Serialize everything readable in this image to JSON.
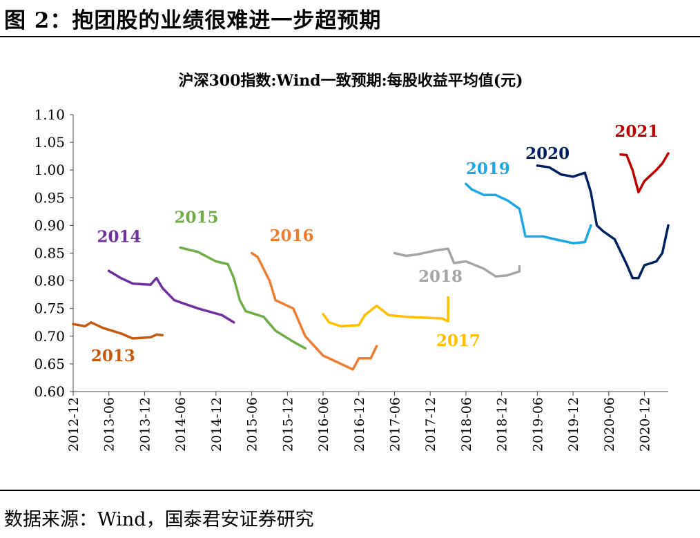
{
  "figure_title": "图 2：抱团股的业绩很难进一步超预期",
  "source_note": "数据来源：Wind，国泰君安证券研究",
  "chart_data": {
    "type": "line",
    "title": "沪深300指数:Wind一致预期:每股收益平均值(元)",
    "xlabel": "",
    "ylabel": "",
    "ylim": [
      0.6,
      1.1
    ],
    "yticks": [
      "0.60",
      "0.65",
      "0.70",
      "0.75",
      "0.80",
      "0.85",
      "0.90",
      "0.95",
      "1.00",
      "1.05",
      "1.10"
    ],
    "xrange": [
      "2012-12",
      "2021-04"
    ],
    "xticks": [
      "2012-12",
      "2013-06",
      "2013-12",
      "2014-06",
      "2014-12",
      "2015-06",
      "2015-12",
      "2016-06",
      "2016-12",
      "2017-06",
      "2017-12",
      "2018-06",
      "2018-12",
      "2019-06",
      "2019-12",
      "2020-06",
      "2020-12"
    ],
    "grid": false,
    "legend": "series labels placed directly next to each line",
    "series": [
      {
        "name": "2013",
        "color": "#C55A11",
        "points": [
          [
            "2012-12",
            0.722
          ],
          [
            "2013-02",
            0.718
          ],
          [
            "2013-03",
            0.725
          ],
          [
            "2013-05",
            0.715
          ],
          [
            "2013-08",
            0.705
          ],
          [
            "2013-10",
            0.696
          ],
          [
            "2014-01",
            0.698
          ],
          [
            "2014-02",
            0.703
          ],
          [
            "2014-03",
            0.702
          ]
        ]
      },
      {
        "name": "2014",
        "color": "#7030A0",
        "points": [
          [
            "2013-06",
            0.818
          ],
          [
            "2013-08",
            0.805
          ],
          [
            "2013-10",
            0.795
          ],
          [
            "2014-01",
            0.793
          ],
          [
            "2014-02",
            0.805
          ],
          [
            "2014-03",
            0.787
          ],
          [
            "2014-05",
            0.765
          ],
          [
            "2014-09",
            0.75
          ],
          [
            "2015-01",
            0.738
          ],
          [
            "2015-03",
            0.725
          ]
        ]
      },
      {
        "name": "2015",
        "color": "#70AD47",
        "points": [
          [
            "2014-06",
            0.86
          ],
          [
            "2014-09",
            0.852
          ],
          [
            "2014-12",
            0.835
          ],
          [
            "2015-02",
            0.83
          ],
          [
            "2015-03",
            0.805
          ],
          [
            "2015-04",
            0.765
          ],
          [
            "2015-05",
            0.745
          ],
          [
            "2015-08",
            0.735
          ],
          [
            "2015-10",
            0.71
          ],
          [
            "2016-01",
            0.69
          ],
          [
            "2016-03",
            0.678
          ]
        ]
      },
      {
        "name": "2016",
        "color": "#ED7D31",
        "points": [
          [
            "2015-06",
            0.85
          ],
          [
            "2015-07",
            0.843
          ],
          [
            "2015-09",
            0.8
          ],
          [
            "2015-10",
            0.765
          ],
          [
            "2016-01",
            0.75
          ],
          [
            "2016-03",
            0.7
          ],
          [
            "2016-06",
            0.665
          ],
          [
            "2016-09",
            0.65
          ],
          [
            "2016-11",
            0.64
          ],
          [
            "2016-12",
            0.66
          ],
          [
            "2017-02",
            0.66
          ],
          [
            "2017-03",
            0.682
          ]
        ]
      },
      {
        "name": "2017",
        "color": "#FFC000",
        "points": [
          [
            "2016-06",
            0.74
          ],
          [
            "2016-07",
            0.725
          ],
          [
            "2016-09",
            0.718
          ],
          [
            "2016-12",
            0.72
          ],
          [
            "2017-01",
            0.738
          ],
          [
            "2017-03",
            0.755
          ],
          [
            "2017-05",
            0.738
          ],
          [
            "2017-08",
            0.735
          ],
          [
            "2018-02",
            0.732
          ],
          [
            "2018-03",
            0.727
          ],
          [
            "2018-03",
            0.77
          ]
        ]
      },
      {
        "name": "2018",
        "color": "#A5A5A5",
        "points": [
          [
            "2017-06",
            0.85
          ],
          [
            "2017-08",
            0.845
          ],
          [
            "2017-10",
            0.848
          ],
          [
            "2018-01",
            0.855
          ],
          [
            "2018-03",
            0.858
          ],
          [
            "2018-04",
            0.832
          ],
          [
            "2018-06",
            0.835
          ],
          [
            "2018-09",
            0.822
          ],
          [
            "2018-11",
            0.808
          ],
          [
            "2019-01",
            0.81
          ],
          [
            "2019-03",
            0.817
          ],
          [
            "2019-03",
            0.826
          ]
        ]
      },
      {
        "name": "2019",
        "color": "#1DA8E4",
        "points": [
          [
            "2018-06",
            0.975
          ],
          [
            "2018-07",
            0.965
          ],
          [
            "2018-09",
            0.955
          ],
          [
            "2018-11",
            0.955
          ],
          [
            "2018-12",
            0.95
          ],
          [
            "2019-01",
            0.945
          ],
          [
            "2019-03",
            0.93
          ],
          [
            "2019-04",
            0.88
          ],
          [
            "2019-07",
            0.88
          ],
          [
            "2019-09",
            0.875
          ],
          [
            "2019-12",
            0.868
          ],
          [
            "2020-02",
            0.87
          ],
          [
            "2020-03",
            0.9
          ]
        ]
      },
      {
        "name": "2020",
        "color": "#002060",
        "points": [
          [
            "2019-06",
            1.008
          ],
          [
            "2019-08",
            1.005
          ],
          [
            "2019-10",
            0.992
          ],
          [
            "2019-12",
            0.988
          ],
          [
            "2020-02",
            0.995
          ],
          [
            "2020-03",
            0.96
          ],
          [
            "2020-04",
            0.9
          ],
          [
            "2020-05",
            0.89
          ],
          [
            "2020-07",
            0.875
          ],
          [
            "2020-09",
            0.83
          ],
          [
            "2020-10",
            0.805
          ],
          [
            "2020-11",
            0.805
          ],
          [
            "2020-12",
            0.828
          ],
          [
            "2021-02",
            0.835
          ],
          [
            "2021-03",
            0.85
          ],
          [
            "2021-04",
            0.9
          ]
        ]
      },
      {
        "name": "2021",
        "color": "#C00000",
        "points": [
          [
            "2020-08",
            1.028
          ],
          [
            "2020-09",
            1.027
          ],
          [
            "2020-10",
            1.0
          ],
          [
            "2020-11",
            0.96
          ],
          [
            "2020-12",
            0.98
          ],
          [
            "2021-01",
            0.99
          ],
          [
            "2021-02",
            1.0
          ],
          [
            "2021-03",
            1.012
          ],
          [
            "2021-04",
            1.03
          ]
        ]
      }
    ]
  }
}
